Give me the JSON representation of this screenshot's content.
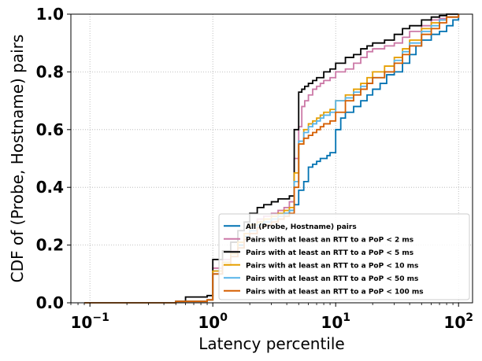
{
  "chart_data": {
    "type": "line",
    "xlabel": "Latency percentile",
    "ylabel": "CDF of (Probe, Hostname) pairs",
    "xscale": "log",
    "xlim": [
      0.07,
      130
    ],
    "ylim": [
      0.0,
      1.0
    ],
    "xticks": [
      {
        "value": 0.1,
        "base": "10",
        "exp": "−1"
      },
      {
        "value": 1,
        "base": "10",
        "exp": "0"
      },
      {
        "value": 10,
        "base": "10",
        "exp": "1"
      },
      {
        "value": 100,
        "base": "10",
        "exp": "2"
      }
    ],
    "yticks": [
      "0.0",
      "0.2",
      "0.4",
      "0.6",
      "0.8",
      "1.0"
    ],
    "grid": true,
    "legend_position": "bottom-right",
    "series": [
      {
        "name": "All (Probe, Hostname) pairs",
        "color": "#0072b2",
        "x": [
          0.09,
          0.5,
          0.9,
          1.0,
          1.0,
          1.2,
          1.4,
          1.6,
          1.8,
          2.0,
          2.3,
          2.6,
          3.0,
          3.4,
          3.8,
          4.2,
          4.6,
          5.0,
          5.5,
          6.0,
          6.5,
          7.0,
          7.5,
          8.0,
          8.5,
          9.0,
          10.0,
          11.0,
          12.0,
          14.0,
          16.0,
          18.0,
          20.0,
          23.0,
          26.0,
          30.0,
          35.0,
          40.0,
          45.0,
          50.0,
          60.0,
          70.0,
          80.0,
          90.0,
          100.0
        ],
        "y": [
          0.0,
          0.005,
          0.01,
          0.015,
          0.11,
          0.14,
          0.17,
          0.2,
          0.23,
          0.25,
          0.26,
          0.28,
          0.29,
          0.3,
          0.31,
          0.32,
          0.34,
          0.39,
          0.42,
          0.47,
          0.48,
          0.49,
          0.5,
          0.5,
          0.51,
          0.52,
          0.6,
          0.64,
          0.66,
          0.68,
          0.7,
          0.72,
          0.74,
          0.76,
          0.79,
          0.8,
          0.83,
          0.86,
          0.89,
          0.91,
          0.93,
          0.94,
          0.96,
          0.98,
          1.0
        ]
      },
      {
        "name": "Pairs with at least an RTT to a PoP < 2 ms",
        "color": "#cc79a7",
        "x": [
          0.09,
          0.5,
          0.9,
          1.0,
          1.0,
          1.2,
          1.4,
          1.6,
          1.8,
          2.0,
          2.3,
          2.6,
          3.0,
          3.4,
          3.8,
          4.2,
          4.6,
          5.0,
          5.3,
          5.6,
          6.0,
          6.5,
          7.0,
          7.5,
          8.0,
          9.0,
          10.0,
          12.0,
          14.0,
          16.0,
          18.0,
          20.0,
          25.0,
          30.0,
          35.0,
          40.0,
          50.0,
          60.0,
          70.0,
          80.0,
          100.0
        ],
        "y": [
          0.0,
          0.005,
          0.01,
          0.015,
          0.12,
          0.15,
          0.18,
          0.21,
          0.24,
          0.27,
          0.29,
          0.3,
          0.31,
          0.32,
          0.33,
          0.35,
          0.5,
          0.61,
          0.68,
          0.7,
          0.72,
          0.74,
          0.75,
          0.76,
          0.77,
          0.78,
          0.8,
          0.81,
          0.83,
          0.85,
          0.87,
          0.88,
          0.89,
          0.9,
          0.92,
          0.94,
          0.96,
          0.98,
          0.985,
          0.99,
          1.0
        ]
      },
      {
        "name": "Pairs with at least an RTT to a PoP < 5 ms",
        "color": "#000000",
        "x": [
          0.09,
          0.5,
          0.6,
          0.9,
          1.0,
          1.0,
          1.2,
          1.4,
          1.6,
          1.8,
          2.0,
          2.3,
          2.6,
          3.0,
          3.4,
          3.8,
          4.2,
          4.6,
          5.0,
          5.3,
          5.6,
          6.0,
          6.5,
          7.0,
          8.0,
          9.0,
          10.0,
          12.0,
          14.0,
          16.0,
          18.0,
          20.0,
          25.0,
          30.0,
          35.0,
          40.0,
          50.0,
          60.0,
          70.0,
          80.0,
          100.0
        ],
        "y": [
          0.0,
          0.005,
          0.02,
          0.025,
          0.03,
          0.15,
          0.18,
          0.21,
          0.25,
          0.28,
          0.31,
          0.33,
          0.34,
          0.35,
          0.36,
          0.36,
          0.37,
          0.6,
          0.73,
          0.74,
          0.75,
          0.76,
          0.77,
          0.78,
          0.8,
          0.81,
          0.83,
          0.85,
          0.86,
          0.88,
          0.89,
          0.9,
          0.91,
          0.93,
          0.95,
          0.96,
          0.98,
          0.99,
          0.995,
          1.0,
          1.0
        ]
      },
      {
        "name": "Pairs with at least an RTT to a PoP < 10 ms",
        "color": "#e69f00",
        "x": [
          0.09,
          0.5,
          0.9,
          1.0,
          1.0,
          1.2,
          1.4,
          1.6,
          1.8,
          2.0,
          2.3,
          2.6,
          3.0,
          3.4,
          3.8,
          4.2,
          4.6,
          5.0,
          5.5,
          6.0,
          6.5,
          7.0,
          7.5,
          8.0,
          9.0,
          10.0,
          12.0,
          14.0,
          16.0,
          18.0,
          20.0,
          25.0,
          30.0,
          35.0,
          40.0,
          50.0,
          60.0,
          70.0,
          80.0,
          100.0
        ],
        "y": [
          0.0,
          0.005,
          0.01,
          0.015,
          0.11,
          0.14,
          0.17,
          0.21,
          0.24,
          0.27,
          0.28,
          0.29,
          0.3,
          0.31,
          0.32,
          0.33,
          0.45,
          0.55,
          0.6,
          0.62,
          0.63,
          0.64,
          0.65,
          0.66,
          0.67,
          0.7,
          0.72,
          0.74,
          0.76,
          0.78,
          0.8,
          0.82,
          0.85,
          0.88,
          0.91,
          0.95,
          0.97,
          0.98,
          0.99,
          1.0
        ]
      },
      {
        "name": "Pairs with at least an RTT to a PoP < 50 ms",
        "color": "#56b4e9",
        "x": [
          0.09,
          0.5,
          0.9,
          1.0,
          1.0,
          1.2,
          1.4,
          1.6,
          1.8,
          2.0,
          2.3,
          2.6,
          3.0,
          3.4,
          3.8,
          4.2,
          4.6,
          5.0,
          5.5,
          6.0,
          6.5,
          7.0,
          7.5,
          8.0,
          9.0,
          10.0,
          12.0,
          14.0,
          16.0,
          18.0,
          20.0,
          25.0,
          30.0,
          35.0,
          40.0,
          50.0,
          60.0,
          70.0,
          80.0,
          100.0
        ],
        "y": [
          0.0,
          0.005,
          0.01,
          0.015,
          0.1,
          0.13,
          0.16,
          0.19,
          0.22,
          0.25,
          0.27,
          0.28,
          0.29,
          0.3,
          0.31,
          0.32,
          0.42,
          0.56,
          0.59,
          0.61,
          0.62,
          0.63,
          0.64,
          0.65,
          0.66,
          0.7,
          0.71,
          0.73,
          0.75,
          0.76,
          0.78,
          0.8,
          0.84,
          0.87,
          0.9,
          0.94,
          0.96,
          0.98,
          0.99,
          1.0
        ]
      },
      {
        "name": "Pairs with at least an RTT to a PoP < 100 ms",
        "color": "#d55e00",
        "x": [
          0.09,
          0.5,
          0.9,
          1.0,
          1.0,
          1.2,
          1.4,
          1.6,
          1.8,
          2.0,
          2.3,
          2.6,
          3.0,
          3.4,
          3.8,
          4.2,
          4.6,
          5.0,
          5.5,
          6.0,
          6.5,
          7.0,
          7.5,
          8.0,
          9.0,
          10.0,
          12.0,
          14.0,
          16.0,
          18.0,
          20.0,
          25.0,
          30.0,
          35.0,
          40.0,
          50.0,
          60.0,
          70.0,
          80.0,
          100.0
        ],
        "y": [
          0.0,
          0.005,
          0.01,
          0.015,
          0.1,
          0.13,
          0.16,
          0.19,
          0.22,
          0.24,
          0.26,
          0.27,
          0.28,
          0.29,
          0.3,
          0.31,
          0.4,
          0.55,
          0.57,
          0.58,
          0.59,
          0.6,
          0.61,
          0.62,
          0.63,
          0.66,
          0.7,
          0.72,
          0.74,
          0.76,
          0.78,
          0.8,
          0.83,
          0.86,
          0.89,
          0.93,
          0.95,
          0.97,
          0.99,
          1.0
        ]
      }
    ]
  }
}
